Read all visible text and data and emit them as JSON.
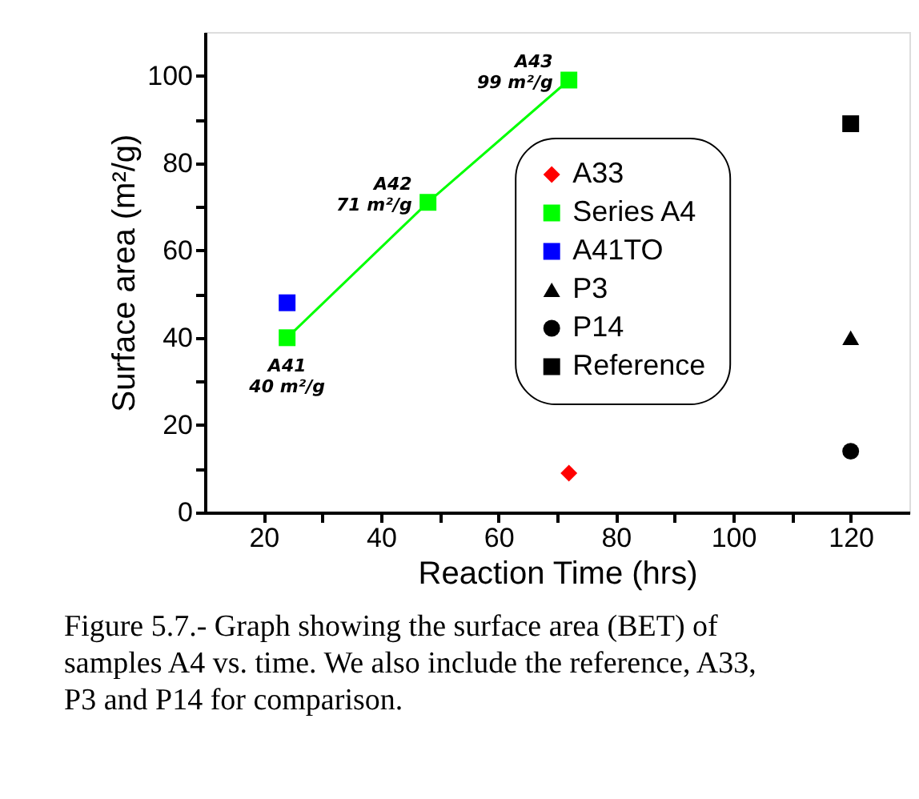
{
  "chart_data": {
    "type": "scatter",
    "xlabel": "Reaction Time (hrs)",
    "ylabel": "Surface area (m²/g)",
    "xlim": [
      10,
      130
    ],
    "ylim": [
      0,
      110
    ],
    "xticks": [
      20,
      {
        "value": 30,
        "label": null
      },
      40,
      {
        "value": 50,
        "label": null
      },
      60,
      {
        "value": 70,
        "label": null
      },
      80,
      {
        "value": 90,
        "label": null
      },
      100,
      {
        "value": 110,
        "label": null
      },
      120
    ],
    "yticks": [
      0,
      {
        "value": 10,
        "label": null
      },
      20,
      {
        "value": 30,
        "label": null
      },
      40,
      {
        "value": 50,
        "label": null
      },
      60,
      {
        "value": 70,
        "label": null
      },
      80,
      {
        "value": 90,
        "label": null
      },
      100
    ],
    "grid": false,
    "legend": "right",
    "series": [
      {
        "name": "A33",
        "type": "scatter",
        "marker": "diamond",
        "color": "#ff0000",
        "x": [
          72
        ],
        "values": [
          9
        ]
      },
      {
        "name": "Series A4",
        "type": "line",
        "marker": "square",
        "color": "#00ff00",
        "x": [
          24,
          48,
          72
        ],
        "values": [
          40,
          71,
          99
        ]
      },
      {
        "name": "A41TO",
        "type": "scatter",
        "marker": "square",
        "color": "#0000ff",
        "x": [
          24
        ],
        "values": [
          48
        ]
      },
      {
        "name": "P3",
        "type": "scatter",
        "marker": "triangle",
        "color": "#000000",
        "x": [
          120
        ],
        "values": [
          40
        ]
      },
      {
        "name": "P14",
        "type": "scatter",
        "marker": "circle",
        "color": "#000000",
        "x": [
          120
        ],
        "values": [
          14
        ]
      },
      {
        "name": "Reference",
        "type": "scatter",
        "marker": "square",
        "color": "#000000",
        "x": [
          120
        ],
        "values": [
          89
        ]
      }
    ],
    "annotations": [
      {
        "text": "A41\n40 m²/g",
        "x": 24,
        "y": 40
      },
      {
        "text": "A42\n71 m²/g",
        "x": 48,
        "y": 71
      },
      {
        "text": "A43\n99 m²/g",
        "x": 72,
        "y": 99
      },
      "Figure 5.7.- Graph showing the surface area (BET) of samples A4 vs. time. We also include the reference, A33, P3 and P14 for comparison."
    ]
  }
}
